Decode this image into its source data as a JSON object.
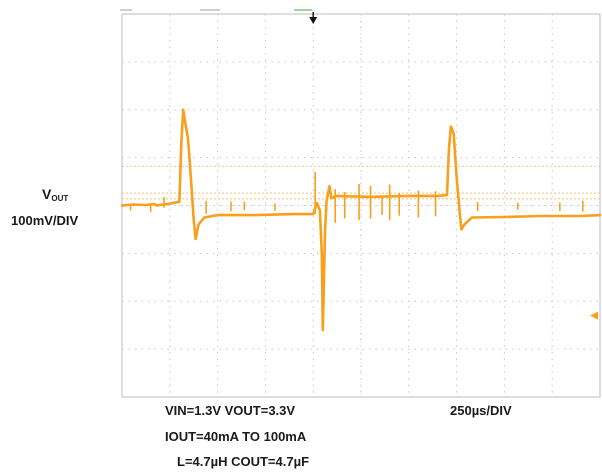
{
  "chart_data": {
    "type": "line",
    "title": "",
    "channel": {
      "name_main": "V",
      "name_sub": "OUT",
      "scale": "100mV/DIV"
    },
    "timebase": "250µs/DIV",
    "conditions": [
      "VIN=1.3V VOUT=3.3V",
      "IOUT=40mA TO 100mA",
      "L=4.7µH COUT=4.7µF"
    ],
    "x_unit": "µs",
    "y_unit": "mV (relative to baseline)",
    "xlim": [
      0,
      2500
    ],
    "ylim": [
      -400,
      400
    ],
    "grid": {
      "x_divisions": 10,
      "y_divisions": 8,
      "dotted": true
    },
    "cursors_mV": [
      82,
      26,
      14
    ],
    "series": [
      {
        "color": "#f7a01e",
        "points": [
          [
            0,
            0
          ],
          [
            60,
            2
          ],
          [
            120,
            1
          ],
          [
            170,
            3
          ],
          [
            180,
            0
          ],
          [
            250,
            4
          ],
          [
            300,
            8
          ],
          [
            310,
            130
          ],
          [
            320,
            200
          ],
          [
            330,
            175
          ],
          [
            345,
            140
          ],
          [
            360,
            60
          ],
          [
            375,
            -30
          ],
          [
            385,
            -70
          ],
          [
            400,
            -40
          ],
          [
            430,
            -25
          ],
          [
            500,
            -20
          ],
          [
            700,
            -20
          ],
          [
            900,
            -18
          ],
          [
            1000,
            -18
          ],
          [
            1020,
            5
          ],
          [
            1035,
            -10
          ],
          [
            1045,
            -100
          ],
          [
            1050,
            -260
          ],
          [
            1055,
            -180
          ],
          [
            1062,
            -50
          ],
          [
            1070,
            10
          ],
          [
            1085,
            40
          ],
          [
            1095,
            15
          ],
          [
            1120,
            20
          ],
          [
            1300,
            18
          ],
          [
            1500,
            20
          ],
          [
            1650,
            20
          ],
          [
            1700,
            22
          ],
          [
            1710,
            120
          ],
          [
            1720,
            165
          ],
          [
            1735,
            150
          ],
          [
            1750,
            60
          ],
          [
            1765,
            -10
          ],
          [
            1775,
            -50
          ],
          [
            1790,
            -40
          ],
          [
            1830,
            -25
          ],
          [
            2000,
            -24
          ],
          [
            2200,
            -22
          ],
          [
            2400,
            -22
          ],
          [
            2500,
            -20
          ]
        ]
      }
    ],
    "spikes": [
      [
        45,
        10,
        -8
      ],
      [
        150,
        14,
        -10
      ],
      [
        220,
        18,
        0
      ],
      [
        440,
        22,
        -12
      ],
      [
        570,
        16,
        -8
      ],
      [
        640,
        14,
        -6
      ],
      [
        800,
        12,
        -8
      ],
      [
        1010,
        70,
        0
      ],
      [
        1115,
        56,
        -22
      ],
      [
        1165,
        44,
        -16
      ],
      [
        1240,
        60,
        -15
      ],
      [
        1300,
        55,
        -14
      ],
      [
        1360,
        30,
        -12
      ],
      [
        1400,
        60,
        -16
      ],
      [
        1450,
        38,
        -12
      ],
      [
        1550,
        45,
        -14
      ],
      [
        1640,
        42,
        -12
      ],
      [
        1860,
        15,
        -8
      ],
      [
        2070,
        12,
        -6
      ],
      [
        2290,
        14,
        -8
      ],
      [
        2410,
        18,
        -8
      ]
    ],
    "markers": {
      "trigger_position_us": 1000,
      "ground_reference_mV": -230
    }
  }
}
